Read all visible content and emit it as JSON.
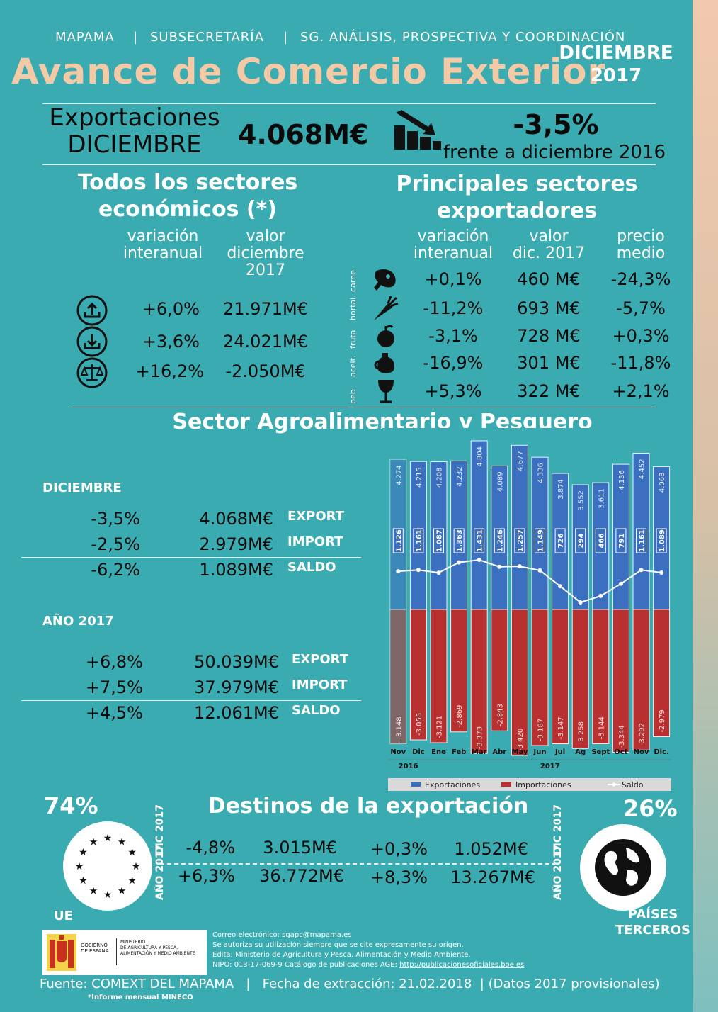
{
  "header": {
    "org": "MAPAMA",
    "subsec": "SUBSECRETARÍA",
    "sg": "SG. ANÁLISIS, PROSPECTIVA Y COORDINACIÓN",
    "title": "Avance de Comercio Exterior",
    "month": "DICIEMBRE",
    "year": "2017"
  },
  "summary": {
    "label_line1": "Exportaciones",
    "label_line2": "DICIEMBRE",
    "value": "4.068M€",
    "change": "-3,5%",
    "change_note": "frente a diciembre 2016",
    "icon": "declining-bars-icon"
  },
  "all_sectors": {
    "title_line1": "Todos los sectores",
    "title_line2": "económicos (*)",
    "col1_line1": "variación",
    "col1_line2": "interanual",
    "col2_line1": "valor",
    "col2_line2": "diciembre",
    "col2_line3": "2017",
    "rows": [
      {
        "icon": "export-box-icon",
        "var": "+6,0%",
        "val": "21.971M€"
      },
      {
        "icon": "import-box-icon",
        "var": "+3,6%",
        "val": "24.021M€"
      },
      {
        "icon": "balance-scale-icon",
        "var": "+16,2%",
        "val": "-2.050M€"
      }
    ]
  },
  "main_sectors": {
    "title_line1": "Principales sectores",
    "title_line2": "exportadores",
    "col1_line1": "variación",
    "col1_line2": "interanual",
    "col2_line1": "valor",
    "col2_line2": "dic. 2017",
    "col3_line1": "precio",
    "col3_line2": "medio",
    "rows": [
      {
        "tag": "carne",
        "icon": "ham-icon",
        "var": "+0,1%",
        "val": "460 M€",
        "price": "-24,3%"
      },
      {
        "tag": "hortal.",
        "icon": "carrot-icon",
        "var": "-11,2%",
        "val": "693 M€",
        "price": "-5,7%"
      },
      {
        "tag": "fruta",
        "icon": "apple-icon",
        "var": "-3,1%",
        "val": "728 M€",
        "price": "+0,3%"
      },
      {
        "tag": "aceit.",
        "icon": "oil-jar-icon",
        "var": "-16,9%",
        "val": "301 M€",
        "price": "-11,8%"
      },
      {
        "tag": "beb.",
        "icon": "wine-glass-icon",
        "var": "+5,3%",
        "val": "322 M€",
        "price": "+2,1%"
      }
    ]
  },
  "agro": {
    "title": "Sector Agroalimentario y Pesquero",
    "dic_label": "DICIEMBRE",
    "dic_rows": [
      {
        "pct": "-3,5%",
        "val": "4.068M€",
        "tag": "EXPORT"
      },
      {
        "pct": "-2,5%",
        "val": "2.979M€",
        "tag": "IMPORT"
      },
      {
        "pct": "-6,2%",
        "val": "1.089M€",
        "tag": "SALDO"
      }
    ],
    "year_label": "AÑO 2017",
    "year_rows": [
      {
        "pct": "+6,8%",
        "val": "50.039M€",
        "tag": "EXPORT"
      },
      {
        "pct": "+7,5%",
        "val": "37.979M€",
        "tag": "IMPORT"
      },
      {
        "pct": "+4,5%",
        "val": "12.061M€",
        "tag": "SALDO"
      }
    ]
  },
  "chart_data": {
    "type": "bar",
    "categories": [
      "Nov",
      "Dic",
      "Ene",
      "Feb",
      "Mar",
      "Abr",
      "May",
      "Jun",
      "Jul",
      "Ag",
      "Sept",
      "Oct",
      "Nov",
      "Dic."
    ],
    "year_labels": [
      "2016",
      "2017"
    ],
    "series": [
      {
        "name": "Exportaciones",
        "values": [
          4274,
          4215,
          4208,
          4232,
          4804,
          4089,
          4677,
          4336,
          3874,
          3552,
          3611,
          4136,
          4452,
          4068
        ],
        "labels": [
          "4.274",
          "4.215",
          "4.208",
          "4.232",
          "4.804",
          "4.089",
          "4.677",
          "4.336",
          "3.874",
          "3.552",
          "3.611",
          "4.136",
          "4.452",
          "4.068"
        ],
        "color": "#3b6fbf"
      },
      {
        "name": "Importaciones",
        "values": [
          -3148,
          -3055,
          -3121,
          -2869,
          -3373,
          -2843,
          -3420,
          -3187,
          -3147,
          -3258,
          -3144,
          -3344,
          -3292,
          -2979
        ],
        "labels": [
          "-3.148",
          "-3.055",
          "-3.121",
          "-2.869",
          "-3.373",
          "-2.843",
          "-3.420",
          "-3.187",
          "-3.147",
          "-3.258",
          "-3.144",
          "-3.344",
          "-3.292",
          "-2.979"
        ],
        "color": "#b8302f"
      },
      {
        "name": "Saldo",
        "type": "line",
        "values": [
          1126,
          1161,
          1087,
          1363,
          1431,
          1246,
          1257,
          1149,
          726,
          294,
          466,
          791,
          1161,
          1089
        ],
        "labels": [
          "1.126",
          "1.161",
          "1.087",
          "1.363",
          "1.431",
          "1.246",
          "1.257",
          "1.149",
          "726",
          "294",
          "466",
          "791",
          "1.161",
          "1.089"
        ],
        "color": "#ffffff"
      }
    ],
    "legend": "bottom",
    "grid": false
  },
  "destinations": {
    "title": "Destinos de la exportación",
    "ue_pct": "74%",
    "ue_label": "UE",
    "terc_pct": "26%",
    "terc_label_line1": "PAÍSES",
    "terc_label_line2": "TERCEROS",
    "tag_dic": "DIC",
    "tag_2017": "2017",
    "tag_ano": "AÑO",
    "ue_dic_pct": "-4,8%",
    "ue_dic_val": "3.015M€",
    "ue_year_pct": "+6,3%",
    "ue_year_val": "36.772M€",
    "t_dic_pct": "+0,3%",
    "t_dic_val": "1.052M€",
    "t_year_pct": "+8,3%",
    "t_year_val": "13.267M€"
  },
  "footer": {
    "gob1": "GOBIERNO",
    "gob2": "DE ESPAÑA",
    "min1": "MINISTERIO",
    "min2": "DE AGRICULTURA Y PESCA,",
    "min3": "ALIMENTACIÓN Y MEDIO AMBIENTE",
    "email": "Correo electrónico: sgapc@mapama.es",
    "auth": "Se autoriza su utilización siempre que se cite expresamente su origen.",
    "edita": "Edita: Ministerio de Agricultura y Pesca, Alimentación y Medio Ambiente.",
    "nipo": "NIPO: 013-17-069-9 Catálogo de publicaciones AGE: ",
    "nipo_link": "http://publicacionesoficiales.boe.es",
    "source": "Fuente: COMEXT DEL MAPAMA",
    "date": "Fecha de extracción: 21.02.2018",
    "note": "(Datos 2017 provisionales)",
    "mineco": "*Informe mensual MINECO"
  }
}
